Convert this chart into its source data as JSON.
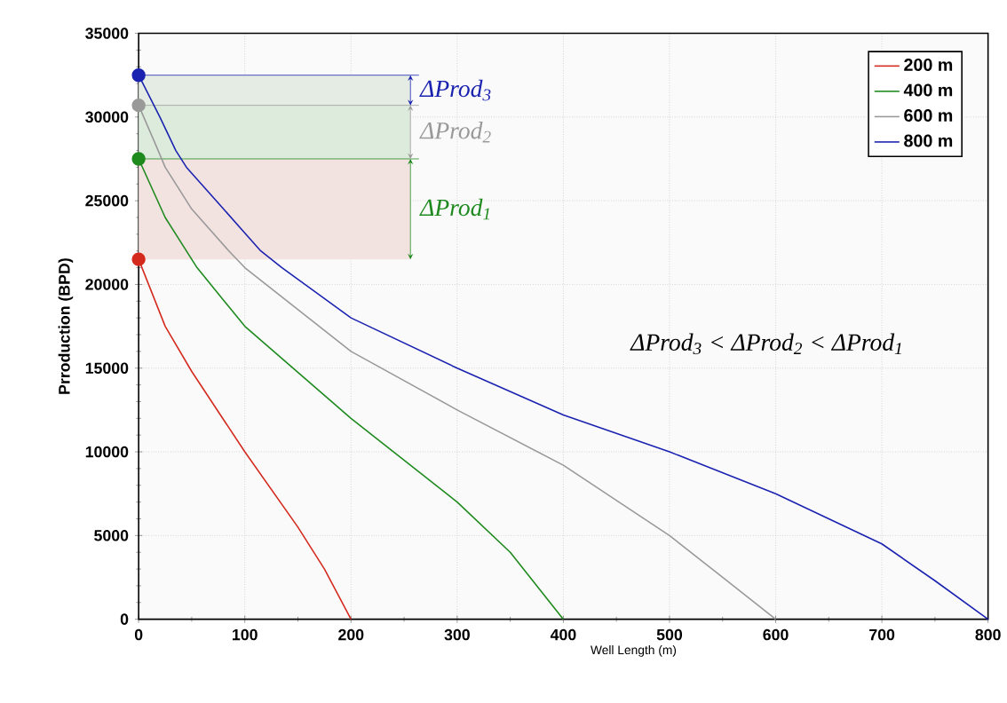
{
  "chart_data": {
    "type": "line",
    "xlabel": "Well Length (m)",
    "ylabel": "Prroduction (BPD)",
    "xlim": [
      0,
      800
    ],
    "ylim": [
      0,
      35000
    ],
    "xticks": [
      0,
      100,
      200,
      300,
      400,
      500,
      600,
      700,
      800
    ],
    "yticks": [
      0,
      5000,
      10000,
      15000,
      20000,
      25000,
      30000,
      35000
    ],
    "grid": true,
    "legend": "top right",
    "line_style": "solid",
    "series": [
      {
        "name": "200 m",
        "color": "#d42a1e",
        "x": [
          0,
          25,
          50,
          100,
          150,
          175,
          200
        ],
        "values": [
          21500,
          17500,
          14800,
          10000,
          5500,
          3000,
          0
        ]
      },
      {
        "name": "400 m",
        "color": "#1e8a1e",
        "x": [
          0,
          25,
          45,
          55,
          100,
          200,
          300,
          350,
          400
        ],
        "values": [
          27500,
          24000,
          22000,
          21000,
          17500,
          12000,
          7000,
          4000,
          0
        ]
      },
      {
        "name": "600 m",
        "color": "#999999",
        "x": [
          0,
          15,
          25,
          50,
          85,
          100,
          200,
          300,
          400,
          500,
          550,
          600
        ],
        "values": [
          30700,
          28500,
          27000,
          24500,
          22000,
          21000,
          16000,
          12500,
          9200,
          5000,
          2500,
          0
        ]
      },
      {
        "name": "800 m",
        "color": "#1a22b0",
        "x": [
          0,
          20,
          35,
          45,
          80,
          115,
          135,
          200,
          300,
          400,
          500,
          600,
          700,
          750,
          800
        ],
        "values": [
          32500,
          30000,
          28000,
          27000,
          24500,
          22000,
          21000,
          18000,
          15000,
          12200,
          10000,
          7500,
          4500,
          2300,
          0
        ]
      }
    ],
    "bands": [
      {
        "axis": "y",
        "from": 21500,
        "to": 27500,
        "label": "ΔProd$_{1}$",
        "color": "#f2e2e0"
      },
      {
        "axis": "y",
        "from": 27500,
        "to": 30700,
        "label": "ΔProd$_{2}$",
        "color": "#dcebdc"
      },
      {
        "axis": "y",
        "from": 30700,
        "to": 32500,
        "label": "ΔProd$_{3}$",
        "color": "#e4ece4"
      }
    ],
    "annotations": [
      "ΔProd$_{3}$ < ΔProd$_{2}$ < ΔProd$_{1}$"
    ]
  }
}
